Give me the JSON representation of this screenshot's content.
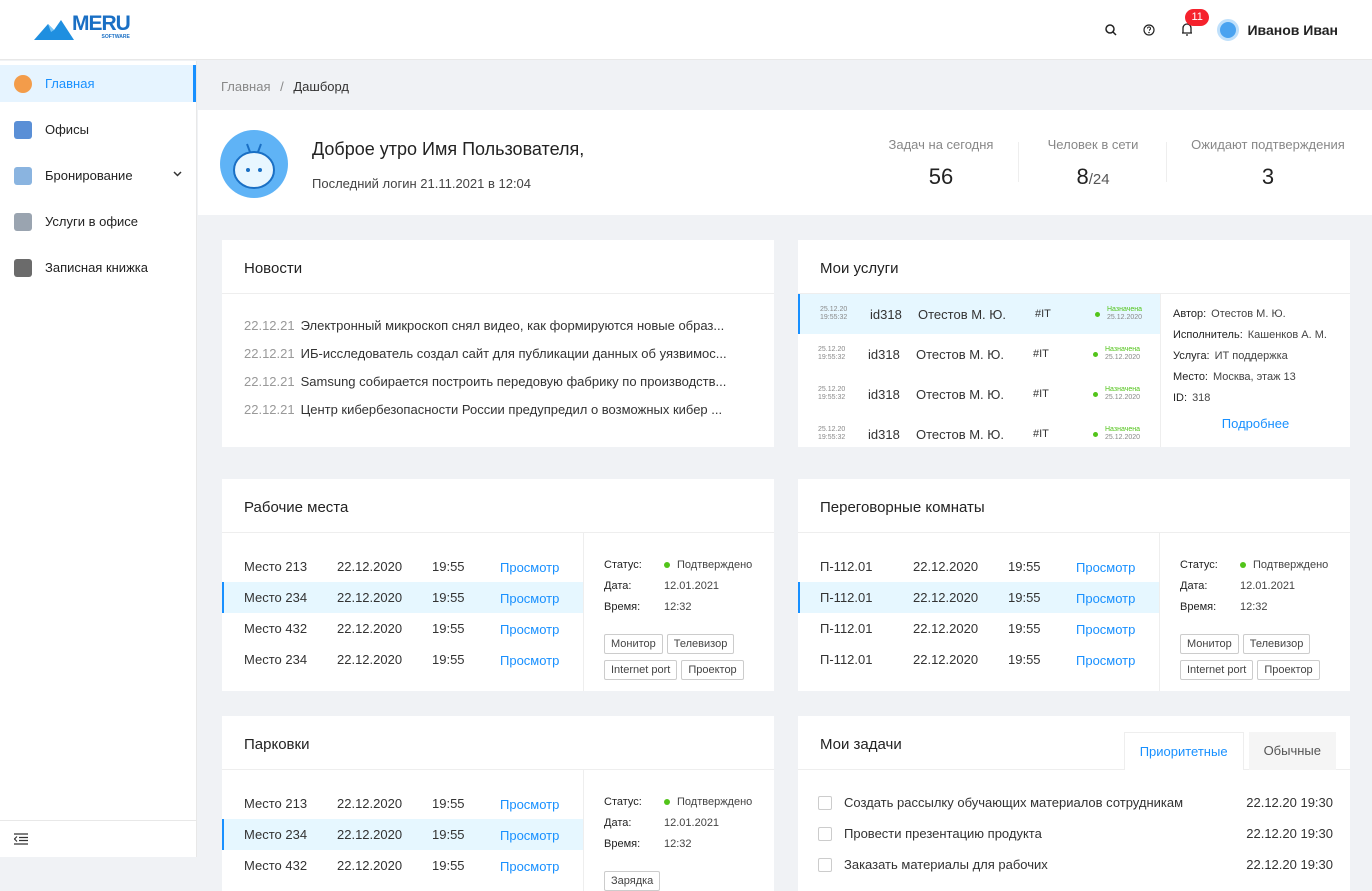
{
  "header": {
    "logo": "MERU",
    "logo_sub": "SOFTWARE",
    "notifications": "11",
    "user": "Иванов Иван"
  },
  "sidebar": {
    "items": [
      "Главная",
      "Офисы",
      "Бронирование",
      "Услуги в офисе",
      "Записная книжка"
    ]
  },
  "breadcrumb": {
    "items": [
      "Главная",
      "Дашборд"
    ],
    "separator": "/"
  },
  "greeting": {
    "title": "Доброе утро Имя Пользователя,",
    "subtitle": "Последний логин 21.11.2021 в  12:04",
    "stats": [
      {
        "label": "Задач на сегодня",
        "value": "56"
      },
      {
        "label": "Человек в сети",
        "value": "8",
        "total": "/24"
      },
      {
        "label": "Ожидают подтверждения",
        "value": "3"
      }
    ]
  },
  "news": {
    "title": "Новости",
    "items": [
      {
        "date": "22.12.21",
        "text": "Электронный микроскоп снял видео, как формируются новые образ..."
      },
      {
        "date": "22.12.21",
        "text": "ИБ-исследователь создал сайт для публикации данных об уязвимос..."
      },
      {
        "date": "22.12.21",
        "text": "Samsung собирается построить передовую фабрику по производств..."
      },
      {
        "date": "22.12.21",
        "text": "Центр кибербезопасности России предупредил о возможных кибер ..."
      }
    ]
  },
  "services": {
    "title": "Мои услуги",
    "rows": [
      {
        "date": "25.12.20",
        "time": "19:55:32",
        "id": "id318",
        "person": "Отестов М. Ю.",
        "tag": "#IT",
        "status": "Назначена",
        "status_date": "25.12.2020"
      },
      {
        "date": "25.12.20",
        "time": "19:55:32",
        "id": "id318",
        "person": "Отестов М. Ю.",
        "tag": "#IT",
        "status": "Назначена",
        "status_date": "25.12.2020"
      },
      {
        "date": "25.12.20",
        "time": "19:55:32",
        "id": "id318",
        "person": "Отестов М. Ю.",
        "tag": "#IT",
        "status": "Назначена",
        "status_date": "25.12.2020"
      },
      {
        "date": "25.12.20",
        "time": "19:55:32",
        "id": "id318",
        "person": "Отестов М. Ю.",
        "tag": "#IT",
        "status": "Назначена",
        "status_date": "25.12.2020"
      }
    ],
    "details": [
      {
        "label": "Автор:",
        "value": "Отестов М. Ю."
      },
      {
        "label": "Исполнитель:",
        "value": "Кашенков А. М."
      },
      {
        "label": "Услуга:",
        "value": "ИТ поддержка"
      },
      {
        "label": "Место:",
        "value": "Москва, этаж 13"
      },
      {
        "label": "ID:",
        "value": "318"
      }
    ],
    "link": "Подробнее"
  },
  "workplaces": {
    "title": "Рабочие места",
    "rows": [
      [
        "Место 213",
        "22.12.2020",
        "19:55",
        "Просмотр"
      ],
      [
        "Место 234",
        "22.12.2020",
        "19:55",
        "Просмотр"
      ],
      [
        "Место 432",
        "22.12.2020",
        "19:55",
        "Просмотр"
      ],
      [
        "Место 234",
        "22.12.2020",
        "19:55",
        "Просмотр"
      ]
    ],
    "details": [
      {
        "label": "Статус:",
        "value": "Подтверждено"
      },
      {
        "label": "Дата:",
        "value": "12.01.2021"
      },
      {
        "label": "Время:",
        "value": "12:32"
      }
    ],
    "tags": [
      "Монитор",
      "Телевизор",
      "Internet port",
      "Проектор"
    ]
  },
  "rooms": {
    "title": "Переговорные комнаты",
    "rows": [
      [
        "П-112.01",
        "22.12.2020",
        "19:55",
        "Просмотр"
      ],
      [
        "П-112.01",
        "22.12.2020",
        "19:55",
        "Просмотр"
      ],
      [
        "П-112.01",
        "22.12.2020",
        "19:55",
        "Просмотр"
      ],
      [
        "П-112.01",
        "22.12.2020",
        "19:55",
        "Просмотр"
      ]
    ],
    "details": [
      {
        "label": "Статус:",
        "value": "Подтверждено"
      },
      {
        "label": "Дата:",
        "value": "12.01.2021"
      },
      {
        "label": "Время:",
        "value": "12:32"
      }
    ],
    "tags": [
      "Монитор",
      "Телевизор",
      "Internet port",
      "Проектор"
    ]
  },
  "parking": {
    "title": "Парковки",
    "rows": [
      [
        "Место 213",
        "22.12.2020",
        "19:55",
        "Просмотр"
      ],
      [
        "Место 234",
        "22.12.2020",
        "19:55",
        "Просмотр"
      ],
      [
        "Место 432",
        "22.12.2020",
        "19:55",
        "Просмотр"
      ]
    ],
    "details": [
      {
        "label": "Статус:",
        "value": "Подтверждено"
      },
      {
        "label": "Дата:",
        "value": "12.01.2021"
      },
      {
        "label": "Время:",
        "value": "12:32"
      }
    ],
    "tags": [
      "Зарядка"
    ]
  },
  "tasks": {
    "title": "Мои задачи",
    "tabs": [
      "Приоритетные",
      "Обычные"
    ],
    "items": [
      {
        "text": "Создать рассылку обучающих материалов сотрудникам",
        "date": "22.12.20 19:30"
      },
      {
        "text": "Провести презентацию продукта",
        "date": "22.12.20 19:30"
      },
      {
        "text": "Заказать материалы для рабочих",
        "date": "22.12.20 19:30"
      }
    ]
  }
}
